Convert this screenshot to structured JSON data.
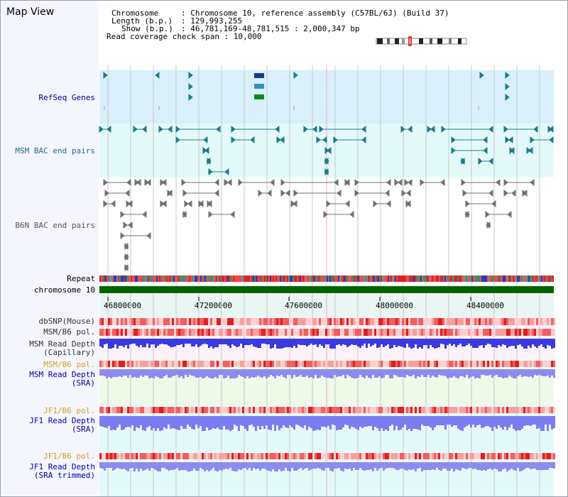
{
  "panel": {
    "title": "Map View"
  },
  "header": {
    "chromosome_label": "Chromosome",
    "chromosome_value": ": Chromosome 10, reference assembly (C57BL/6J) (Build 37)",
    "length_label": "Length (b.p.)",
    "length_value": ": 129,993,255",
    "show_label": "Show (b.p.)",
    "show_value": ": 46,781,169-48,781,515 : 2,000,347 bp",
    "coverage_label": "Read coverage check span : 10,000"
  },
  "tracks": {
    "refseq": "RefSeq Genes",
    "msm_bac": "MSM BAC end pairs",
    "b6n_bac": "B6N BAC end pairs",
    "repeat": "Repeat",
    "chromosome": "chromosome 10",
    "dbsnp": "dbSNP(Mouse)",
    "msm_b6_pol_1": "MSM/B6 pol.",
    "msm_read_depth_cap_1": "MSM Read Depth",
    "msm_read_depth_cap_2": "(Capillary)",
    "msm_b6_pol_2": "MSM/B6 pol.",
    "msm_read_depth_sra_1": "MSM Read Depth",
    "msm_read_depth_sra_2": "(SRA)",
    "jf1_b6_pol_1": "JF1/B6 pol.",
    "jf1_read_depth_sra_1": "JF1 Read Depth",
    "jf1_read_depth_sra_2": "(SRA)",
    "jf1_b6_pol_2": "JF1/B6 pol.",
    "jf1_read_depth_trim_1": "JF1 Read Depth",
    "jf1_read_depth_trim_2": "(SRA trimmed)"
  },
  "axis": {
    "ticks": [
      "46800000",
      "47200000",
      "47600000",
      "48000000",
      "48400000"
    ]
  },
  "colors": {
    "refseq_label": "#00008b",
    "msm_bac_label": "#1e6b8c",
    "b6n_bac_label": "#555555",
    "pol_label": "#d4a020",
    "depth_label": "#0000aa",
    "chromosome_bar": "#006400"
  }
}
